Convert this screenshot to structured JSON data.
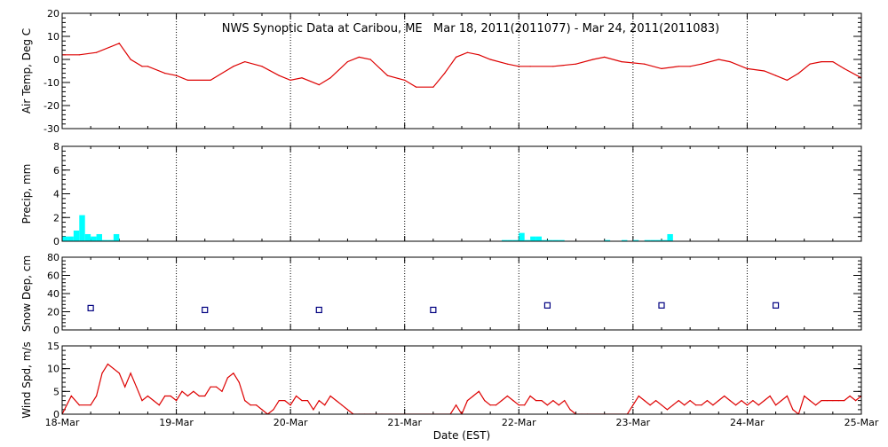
{
  "chart_data": {
    "type": "line",
    "title": "NWS Synoptic Data at Caribou, ME   Mar 18, 2011(2011077) - Mar 24, 2011(2011083)",
    "xlabel": "Date (EST)",
    "x_range": [
      "2011-03-18 00:00",
      "2011-03-25 00:00"
    ],
    "x_tick_labels": [
      "18-Mar",
      "19-Mar",
      "20-Mar",
      "21-Mar",
      "22-Mar",
      "23-Mar",
      "24-Mar",
      "25-Mar"
    ],
    "grid": "vertical dotted lines at each day",
    "colors": {
      "line": "#dd0000",
      "precip": "#00ffff",
      "snow": "#000080",
      "axis": "#000000"
    },
    "panels": [
      {
        "id": "airtemp",
        "type": "line",
        "ylabel": "Air Temp, Deg C",
        "ylim": [
          -30,
          20
        ],
        "yticks": [
          -30,
          -20,
          -10,
          0,
          10,
          20
        ],
        "x_day": [
          0,
          0.15,
          0.3,
          0.5,
          0.6,
          0.7,
          0.75,
          0.9,
          1.0,
          1.1,
          1.3,
          1.5,
          1.6,
          1.75,
          1.9,
          2.0,
          2.1,
          2.25,
          2.35,
          2.5,
          2.6,
          2.7,
          2.85,
          3.0,
          3.1,
          3.25,
          3.35,
          3.45,
          3.55,
          3.65,
          3.75,
          3.9,
          4.0,
          4.1,
          4.3,
          4.5,
          4.65,
          4.75,
          4.9,
          5.1,
          5.25,
          5.4,
          5.5,
          5.6,
          5.75,
          5.85,
          6.0,
          6.15,
          6.25,
          6.35,
          6.45,
          6.55,
          6.65,
          6.75,
          6.85,
          7.0
        ],
        "values": [
          2,
          2,
          3,
          7,
          0,
          -3,
          -3,
          -6,
          -7,
          -9,
          -9,
          -3,
          -1,
          -3,
          -7,
          -9,
          -8,
          -11,
          -8,
          -1,
          1,
          0,
          -7,
          -9,
          -12,
          -12,
          -6,
          1,
          3,
          2,
          0,
          -2,
          -3,
          -3,
          -3,
          -2,
          0,
          1,
          -1,
          -2,
          -4,
          -3,
          -3,
          -2,
          0,
          -1,
          -4,
          -5,
          -7,
          -9,
          -6,
          -2,
          -1,
          -1,
          -4,
          -8
        ]
      },
      {
        "id": "precip",
        "type": "bar",
        "ylabel": "Precip, mm",
        "ylim": [
          0,
          8
        ],
        "yticks": [
          0,
          2,
          4,
          6,
          8
        ],
        "x_day": [
          0.0,
          0.05,
          0.1,
          0.15,
          0.2,
          0.25,
          0.3,
          0.35,
          0.4,
          0.45,
          3.85,
          3.9,
          3.95,
          4.0,
          4.05,
          4.1,
          4.15,
          4.2,
          4.25,
          4.3,
          4.35,
          4.75,
          4.9,
          5.0,
          5.1,
          5.15,
          5.2,
          5.25,
          5.3
        ],
        "values": [
          0.4,
          0.4,
          0.9,
          2.2,
          0.6,
          0.4,
          0.6,
          0.1,
          0.1,
          0.6,
          0.1,
          0.1,
          0.1,
          0.7,
          0.1,
          0.4,
          0.4,
          0.1,
          0.1,
          0.1,
          0.1,
          0.1,
          0.1,
          0.1,
          0.1,
          0.1,
          0.1,
          0.1,
          0.6
        ],
        "bar_width_day": 0.05
      },
      {
        "id": "snow",
        "type": "scatter",
        "ylabel": "Snow Dep, cm",
        "ylim": [
          0,
          80
        ],
        "yticks": [
          0,
          20,
          40,
          60,
          80
        ],
        "x_day": [
          0.25,
          1.25,
          2.25,
          3.25,
          4.25,
          5.25,
          6.25
        ],
        "values": [
          24,
          22,
          22,
          22,
          27,
          27,
          27
        ]
      },
      {
        "id": "wind",
        "type": "line",
        "ylabel": "Wind Spd, m/s",
        "ylim": [
          0,
          15
        ],
        "yticks": [
          0,
          5,
          10,
          15
        ],
        "x_day": [
          0,
          0.08,
          0.15,
          0.25,
          0.3,
          0.35,
          0.4,
          0.45,
          0.5,
          0.55,
          0.6,
          0.65,
          0.7,
          0.75,
          0.8,
          0.85,
          0.9,
          0.95,
          1.0,
          1.05,
          1.1,
          1.15,
          1.2,
          1.25,
          1.3,
          1.35,
          1.4,
          1.45,
          1.5,
          1.55,
          1.6,
          1.65,
          1.7,
          1.75,
          1.8,
          1.85,
          1.9,
          1.95,
          2.0,
          2.05,
          2.1,
          2.15,
          2.2,
          2.25,
          2.3,
          2.35,
          2.4,
          2.45,
          2.5,
          2.55,
          2.6,
          2.65,
          2.7,
          2.75,
          2.8,
          3.4,
          3.45,
          3.5,
          3.55,
          3.6,
          3.65,
          3.7,
          3.75,
          3.8,
          3.85,
          3.9,
          3.95,
          4.0,
          4.05,
          4.1,
          4.15,
          4.2,
          4.25,
          4.3,
          4.35,
          4.4,
          4.45,
          4.5,
          4.55,
          4.6,
          4.95,
          5.0,
          5.05,
          5.1,
          5.15,
          5.2,
          5.25,
          5.3,
          5.35,
          5.4,
          5.45,
          5.5,
          5.55,
          5.6,
          5.65,
          5.7,
          5.75,
          5.8,
          5.85,
          5.9,
          5.95,
          6.0,
          6.05,
          6.1,
          6.15,
          6.2,
          6.25,
          6.3,
          6.35,
          6.4,
          6.45,
          6.5,
          6.55,
          6.6,
          6.65,
          6.7,
          6.75,
          6.8,
          6.85,
          6.9,
          6.95,
          7.0
        ],
        "values": [
          0,
          4,
          2,
          2,
          4,
          9,
          11,
          10,
          9,
          6,
          9,
          6,
          3,
          4,
          3,
          2,
          4,
          4,
          3,
          5,
          4,
          5,
          4,
          4,
          6,
          6,
          5,
          8,
          9,
          7,
          3,
          2,
          2,
          1,
          0,
          1,
          3,
          3,
          2,
          4,
          3,
          3,
          1,
          3,
          2,
          4,
          3,
          2,
          1,
          0,
          0,
          0,
          0,
          0,
          0,
          0,
          2,
          0,
          3,
          4,
          5,
          3,
          2,
          2,
          3,
          4,
          3,
          2,
          2,
          4,
          3,
          3,
          2,
          3,
          2,
          3,
          1,
          0,
          0,
          0,
          0,
          2,
          4,
          3,
          2,
          3,
          2,
          1,
          2,
          3,
          2,
          3,
          2,
          2,
          3,
          2,
          3,
          4,
          3,
          2,
          3,
          2,
          3,
          2,
          3,
          4,
          2,
          3,
          4,
          1,
          0,
          4,
          3,
          2,
          3,
          3,
          3,
          3,
          3,
          4,
          3,
          4
        ]
      }
    ]
  }
}
